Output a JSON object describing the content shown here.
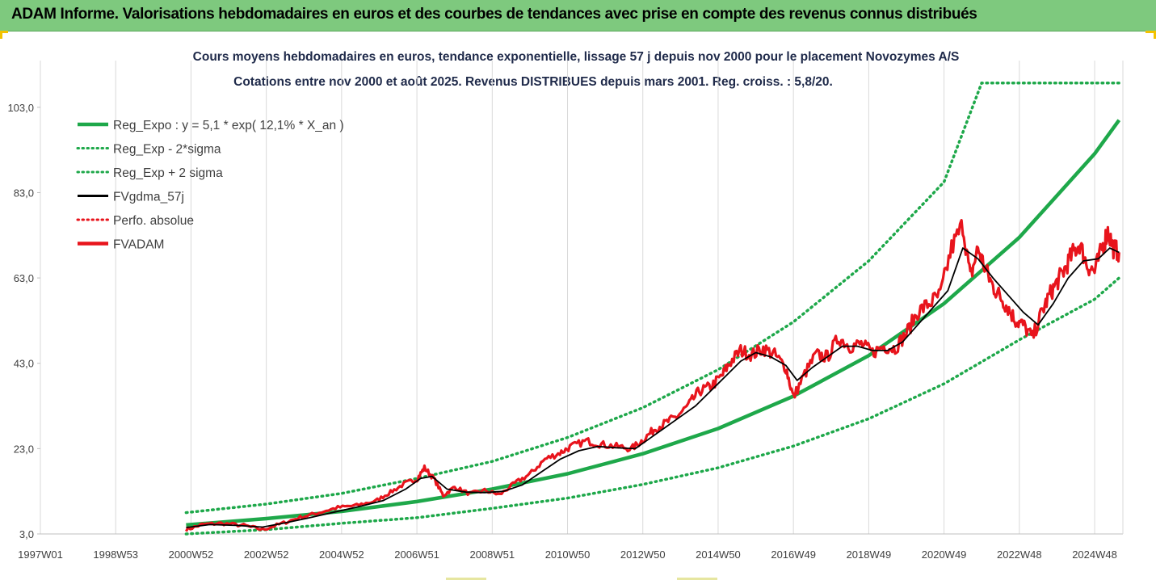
{
  "banner": {
    "title": "ADAM Informe. Valorisations hebdomadaires en euros et des courbes de tendances avec prise en compte des revenus connus distribués"
  },
  "colors": {
    "banner_bg": "#7ec97e",
    "trend": "#1ea84a",
    "band": "#1ea84a",
    "smoothed": "#000000",
    "price": "#e8141c",
    "perf": "#e8141c",
    "accent_marks": "#f2c200"
  },
  "chart_data": {
    "type": "line",
    "title": "Cours moyens hebdomadaires en euros, tendance exponentielle, lissage 57 j depuis nov 2000 pour le placement Novozymes A/S",
    "subtitle": "Cotations entre nov 2000 et août 2025. Revenus DISTRIBUES depuis mars 2001. Reg. croiss. : 5,8/20.",
    "xlabel": "",
    "ylabel": "",
    "x_range": [
      1997.0,
      2025.75
    ],
    "ylim": [
      3.0,
      113.0
    ],
    "y_ticks": [
      "3,0",
      "23,0",
      "43,0",
      "63,0",
      "83,0",
      "103,0"
    ],
    "y_tick_values": [
      3,
      23,
      43,
      63,
      83,
      103
    ],
    "x_ticks": [
      "1997W01",
      "1998W53",
      "2000W52",
      "2002W52",
      "2004W52",
      "2006W51",
      "2008W51",
      "2010W50",
      "2012W50",
      "2014W50",
      "2016W49",
      "2018W49",
      "2020W49",
      "2022W48",
      "2024W48"
    ],
    "x_tick_values": [
      1997.0,
      1999.0,
      2001.0,
      2003.0,
      2005.0,
      2007.0,
      2009.0,
      2011.0,
      2013.0,
      2015.0,
      2017.0,
      2019.0,
      2021.0,
      2023.0,
      2025.0
    ],
    "grid": "vertical",
    "legend_position": "top-left",
    "legend": [
      {
        "label": "Reg_Expo : y = 5,1 * exp( 12,1% *  X_an )",
        "style": "solid-thick",
        "color": "#1ea84a"
      },
      {
        "label": "Reg_Exp - 2*sigma",
        "style": "dotted",
        "color": "#1ea84a"
      },
      {
        "label": "Reg_Exp + 2 sigma",
        "style": "dotted",
        "color": "#1ea84a"
      },
      {
        "label": "FVgdma_57j",
        "style": "solid",
        "color": "#000000"
      },
      {
        "label": "Perfo. absolue",
        "style": "dotted",
        "color": "#e8141c"
      },
      {
        "label": "FVADAM",
        "style": "solid-thick",
        "color": "#e8141c"
      }
    ],
    "trend": {
      "formula": "y = 5,1 * exp(12,1% * X_an)",
      "x": [
        2000.87,
        2003.0,
        2005.0,
        2007.0,
        2009.0,
        2011.0,
        2013.0,
        2015.0,
        2017.0,
        2019.0,
        2021.0,
        2023.0,
        2025.0,
        2025.65
      ],
      "y": [
        5.1,
        6.6,
        8.3,
        10.6,
        13.5,
        17.1,
        21.8,
        27.7,
        35.3,
        44.8,
        57.0,
        72.5,
        92.1,
        100.0
      ]
    },
    "band_lower": {
      "x": [
        2000.87,
        2003.0,
        2005.0,
        2007.0,
        2009.0,
        2011.0,
        2013.0,
        2015.0,
        2017.0,
        2019.0,
        2021.0,
        2023.0,
        2025.0,
        2025.65
      ],
      "y": [
        3.0,
        4.0,
        5.5,
        6.8,
        9.0,
        11.4,
        14.6,
        18.5,
        23.6,
        30.0,
        38.2,
        48.5,
        58.0,
        63.0
      ]
    },
    "band_upper": {
      "x": [
        2000.87,
        2003.0,
        2005.0,
        2007.0,
        2009.0,
        2011.0,
        2013.0,
        2015.0,
        2017.0,
        2019.0,
        2021.0,
        2022.0,
        2025.65
      ],
      "y": [
        8.0,
        10.0,
        12.5,
        16.0,
        20.0,
        25.6,
        32.6,
        41.5,
        52.7,
        67.0,
        85.5,
        108.7,
        108.7
      ]
    },
    "fvadam": {
      "x": [
        2000.87,
        2001.3,
        2001.8,
        2002.4,
        2002.9,
        2003.4,
        2003.9,
        2004.4,
        2004.9,
        2005.4,
        2005.9,
        2006.3,
        2006.7,
        2007.0,
        2007.2,
        2007.45,
        2007.7,
        2008.0,
        2008.4,
        2008.8,
        2009.2,
        2009.6,
        2010.0,
        2010.4,
        2010.8,
        2011.1,
        2011.5,
        2011.9,
        2012.3,
        2012.7,
        2013.0,
        2013.3,
        2013.6,
        2013.9,
        2014.2,
        2014.5,
        2014.8,
        2015.1,
        2015.3,
        2015.6,
        2015.9,
        2016.2,
        2016.5,
        2016.8,
        2017.0,
        2017.3,
        2017.6,
        2017.9,
        2018.2,
        2018.5,
        2018.8,
        2019.1,
        2019.4,
        2019.7,
        2020.0,
        2020.3,
        2020.6,
        2020.9,
        2021.2,
        2021.5,
        2021.7,
        2021.9,
        2022.1,
        2022.3,
        2022.5,
        2022.7,
        2022.9,
        2023.1,
        2023.35,
        2023.6,
        2023.8,
        2024.0,
        2024.2,
        2024.4,
        2024.6,
        2024.8,
        2025.0,
        2025.2,
        2025.35,
        2025.5,
        2025.65
      ],
      "y": [
        4.0,
        5.2,
        5.5,
        5.0,
        4.0,
        5.4,
        6.9,
        8.0,
        9.2,
        9.7,
        10.7,
        12.8,
        14.9,
        15.8,
        18.5,
        16.0,
        12.0,
        14.0,
        12.4,
        13.2,
        12.2,
        14.9,
        17.0,
        20.5,
        22.0,
        23.5,
        24.8,
        24.0,
        23.5,
        23.0,
        25.0,
        27.5,
        29.0,
        30.5,
        33.0,
        36.5,
        37.5,
        40.0,
        43.0,
        46.0,
        45.0,
        46.5,
        45.0,
        42.0,
        35.0,
        40.5,
        45.0,
        44.5,
        49.0,
        47.0,
        47.5,
        45.5,
        47.0,
        46.5,
        50.0,
        55.0,
        57.0,
        59.0,
        70.0,
        75.5,
        63.0,
        70.0,
        65.0,
        61.0,
        58.5,
        56.0,
        53.0,
        52.0,
        49.0,
        55.0,
        59.0,
        62.0,
        65.0,
        68.5,
        71.0,
        66.0,
        64.5,
        70.0,
        74.0,
        70.0,
        69.0
      ]
    },
    "fvgdma_57j": {
      "x": [
        2000.87,
        2001.5,
        2002.2,
        2002.9,
        2003.5,
        2004.2,
        2004.9,
        2005.5,
        2006.1,
        2006.7,
        2007.1,
        2007.4,
        2007.8,
        2008.3,
        2008.8,
        2009.3,
        2009.8,
        2010.3,
        2010.8,
        2011.3,
        2011.8,
        2012.3,
        2012.8,
        2013.2,
        2013.6,
        2014.0,
        2014.4,
        2014.8,
        2015.2,
        2015.6,
        2016.0,
        2016.4,
        2016.8,
        2017.1,
        2017.5,
        2017.9,
        2018.3,
        2018.7,
        2019.1,
        2019.5,
        2019.9,
        2020.3,
        2020.7,
        2021.1,
        2021.5,
        2021.9,
        2022.3,
        2022.7,
        2023.1,
        2023.5,
        2023.9,
        2024.3,
        2024.7,
        2025.1,
        2025.4,
        2025.65
      ],
      "y": [
        4.5,
        5.2,
        5.0,
        4.6,
        5.6,
        6.9,
        8.3,
        9.5,
        10.8,
        13.5,
        16.0,
        16.5,
        13.5,
        12.8,
        12.7,
        13.0,
        14.5,
        17.5,
        20.5,
        22.5,
        23.5,
        23.2,
        23.0,
        25.5,
        28.0,
        30.5,
        33.0,
        36.5,
        40.0,
        43.5,
        45.5,
        44.5,
        42.5,
        39.0,
        42.0,
        44.5,
        47.0,
        47.0,
        46.0,
        46.0,
        48.0,
        52.0,
        56.0,
        60.0,
        70.0,
        67.5,
        63.0,
        59.0,
        55.0,
        52.0,
        57.0,
        63.0,
        67.0,
        67.5,
        70.0,
        69.0
      ]
    }
  }
}
